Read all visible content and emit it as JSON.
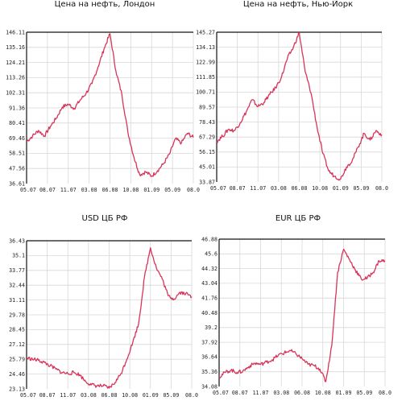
{
  "colors": {
    "series": "#d8345a",
    "grid": "#d8d8d8",
    "axis": "#111111"
  },
  "chart_data": [
    {
      "type": "line",
      "title": "Цена на нефть, Лондон",
      "xlabel": "",
      "ylabel": "",
      "x_ticks": [
        "05.07",
        "08.07",
        "11.07",
        "03.08",
        "06.08",
        "10.08",
        "01.09",
        "05.09",
        "08.0"
      ],
      "y_ticks": [
        "146.11",
        "135.16",
        "124.21",
        "113.26",
        "102.31",
        "91.36",
        "80.41",
        "69.46",
        "58.51",
        "47.56",
        "36.61"
      ],
      "ylim": [
        36.61,
        146.11
      ],
      "grid": true,
      "x": [
        "05.07",
        "06.07",
        "07.07",
        "08.07",
        "09.07",
        "10.07",
        "11.07",
        "12.07",
        "01.08",
        "02.08",
        "03.08",
        "04.08",
        "05.08",
        "06.08",
        "07.08",
        "08.08",
        "09.08",
        "10.08",
        "11.08",
        "12.08",
        "01.09",
        "02.09",
        "03.09",
        "04.09",
        "05.09",
        "06.09",
        "07.09",
        "08.09",
        "09.09"
      ],
      "values": [
        67,
        71,
        75,
        71,
        78,
        84,
        92,
        94,
        91,
        97,
        102,
        109,
        121,
        134,
        145,
        118,
        101,
        74,
        56,
        43,
        45,
        42,
        46,
        51,
        58,
        69,
        66,
        73,
        70
      ]
    },
    {
      "type": "line",
      "title": "Цена на нефть, Нью-Йорк",
      "xlabel": "",
      "ylabel": "",
      "x_ticks": [
        "05.07",
        "08.07",
        "11.07",
        "03.08",
        "06.08",
        "10.08",
        "01.09",
        "05.09",
        "08.0"
      ],
      "y_ticks": [
        "145.27",
        "134.13",
        "122.99",
        "111.85",
        "100.71",
        "89.57",
        "78.43",
        "67.29",
        "56.15",
        "45.01",
        "33.87"
      ],
      "ylim": [
        33.87,
        145.27
      ],
      "grid": true,
      "x": [
        "05.07",
        "06.07",
        "07.07",
        "08.07",
        "09.07",
        "10.07",
        "11.07",
        "12.07",
        "01.08",
        "02.08",
        "03.08",
        "04.08",
        "05.08",
        "06.08",
        "07.08",
        "08.08",
        "09.08",
        "10.08",
        "11.08",
        "12.08",
        "01.09",
        "02.09",
        "03.09",
        "04.09",
        "05.09",
        "06.09",
        "07.09",
        "08.09",
        "09.09"
      ],
      "values": [
        64,
        68,
        73,
        72,
        78,
        86,
        95,
        90,
        93,
        99,
        104,
        112,
        126,
        134,
        145,
        116,
        100,
        75,
        55,
        42,
        38,
        36,
        45,
        50,
        60,
        70,
        65,
        72,
        69
      ]
    },
    {
      "type": "line",
      "title": "USD ЦБ РФ",
      "xlabel": "",
      "ylabel": "",
      "x_ticks": [
        "05.07",
        "08.07",
        "11.07",
        "03.08",
        "06.08",
        "10.08",
        "01.09",
        "05.09",
        "08.0"
      ],
      "y_ticks": [
        "36.43",
        "35.1",
        "33.77",
        "32.44",
        "31.11",
        "29.78",
        "28.45",
        "27.12",
        "25.79",
        "24.46",
        "23.13"
      ],
      "ylim": [
        23.13,
        36.43
      ],
      "grid": true,
      "x": [
        "05.07",
        "06.07",
        "07.07",
        "08.07",
        "09.07",
        "10.07",
        "11.07",
        "12.07",
        "01.08",
        "02.08",
        "03.08",
        "04.08",
        "05.08",
        "06.08",
        "07.08",
        "08.08",
        "09.08",
        "10.08",
        "11.08",
        "12.08",
        "01.09",
        "02.09",
        "03.09",
        "04.09",
        "05.09",
        "06.09",
        "07.09",
        "08.09",
        "09.09"
      ],
      "values": [
        25.9,
        25.8,
        25.7,
        25.5,
        25.2,
        24.9,
        24.6,
        24.5,
        24.6,
        24.4,
        23.8,
        23.5,
        23.4,
        23.4,
        23.2,
        23.7,
        24.5,
        25.8,
        27.3,
        29.0,
        33.2,
        35.8,
        34.0,
        33.0,
        31.5,
        31.2,
        31.8,
        31.7,
        31.4
      ]
    },
    {
      "type": "line",
      "title": "EUR ЦБ РФ",
      "xlabel": "",
      "ylabel": "",
      "x_ticks": [
        "05.07",
        "08.07",
        "11.07",
        "03.08",
        "06.08",
        "10.08",
        "01.09",
        "05.09",
        "08.0"
      ],
      "y_ticks": [
        "46.88",
        "45.6",
        "44.32",
        "43.04",
        "41.76",
        "40.48",
        "39.2",
        "37.92",
        "36.64",
        "35.36",
        "34.08"
      ],
      "ylim": [
        34.08,
        46.88
      ],
      "grid": true,
      "x": [
        "05.07",
        "06.07",
        "07.07",
        "08.07",
        "09.07",
        "10.07",
        "11.07",
        "12.07",
        "01.08",
        "02.08",
        "03.08",
        "04.08",
        "05.08",
        "06.08",
        "07.08",
        "08.08",
        "09.08",
        "10.08",
        "11.08",
        "12.08",
        "01.09",
        "02.09",
        "03.09",
        "04.09",
        "05.09",
        "06.09",
        "07.09",
        "08.09",
        "09.09"
      ],
      "values": [
        34.9,
        35.3,
        35.5,
        35.3,
        35.4,
        35.8,
        36.1,
        36.0,
        36.2,
        36.4,
        36.8,
        37.0,
        37.2,
        36.9,
        36.5,
        36.0,
        35.9,
        35.6,
        34.5,
        37.6,
        44.0,
        46.0,
        45.1,
        44.2,
        43.4,
        43.5,
        44.0,
        45.0,
        45.0
      ]
    }
  ]
}
